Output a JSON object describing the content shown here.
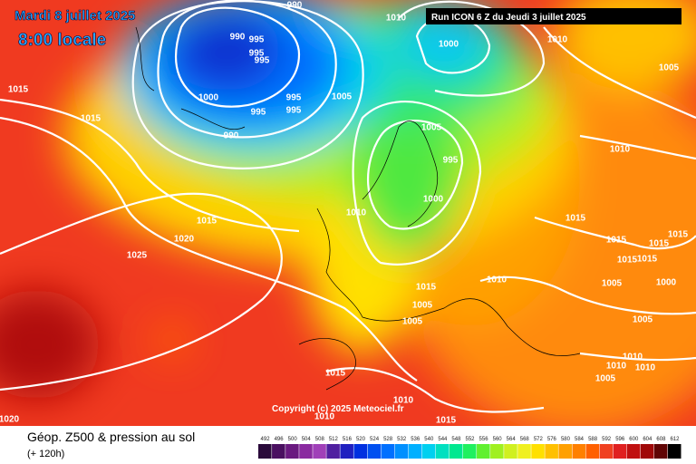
{
  "header": {
    "date": "Mardi 8 juillet 2025",
    "time": "8:00 locale",
    "run": "Run ICON 6 Z du Jeudi 3 juillet 2025"
  },
  "copyright": "Copyright (c) 2025 Meteociel.fr",
  "footer": {
    "title": "Géop. Z500 & pression au sol",
    "lead": "(+ 120h)"
  },
  "isobar_labels": [
    "990",
    "1010",
    "990",
    "995",
    "1000",
    "1010",
    "995",
    "995",
    "1005",
    "1015",
    "1000",
    "1005",
    "995",
    "1015",
    "995",
    "995",
    "990",
    "1005",
    "1010",
    "995",
    "1000",
    "1010",
    "1015",
    "1015",
    "1020",
    "1015",
    "1015",
    "1015",
    "1025",
    "1015",
    "1015",
    "1010",
    "1005",
    "1000",
    "1015",
    "1005",
    "1005",
    "1005",
    "1010",
    "1010",
    "1010",
    "1005",
    "1015",
    "1010",
    "1010",
    "1015",
    "1020"
  ],
  "legend": {
    "values": [
      492,
      496,
      500,
      504,
      508,
      512,
      516,
      520,
      524,
      528,
      532,
      536,
      540,
      544,
      548,
      552,
      556,
      560,
      564,
      568,
      572,
      576,
      580,
      584,
      588,
      592,
      596,
      600,
      604,
      608,
      612
    ],
    "colors": [
      "#2a0a3a",
      "#4a1060",
      "#6a1a80",
      "#8a2aa0",
      "#a040b8",
      "#5020a0",
      "#2020c0",
      "#0030e0",
      "#0050f0",
      "#0070ff",
      "#0090ff",
      "#00b0ff",
      "#00d0f0",
      "#00e0c0",
      "#00e890",
      "#20f060",
      "#60f030",
      "#a0f020",
      "#d0f020",
      "#f0f020",
      "#ffe000",
      "#ffc000",
      "#ffa000",
      "#ff8000",
      "#ff6000",
      "#f04020",
      "#e02020",
      "#c01010",
      "#a00808",
      "#600404",
      "#000000"
    ]
  }
}
